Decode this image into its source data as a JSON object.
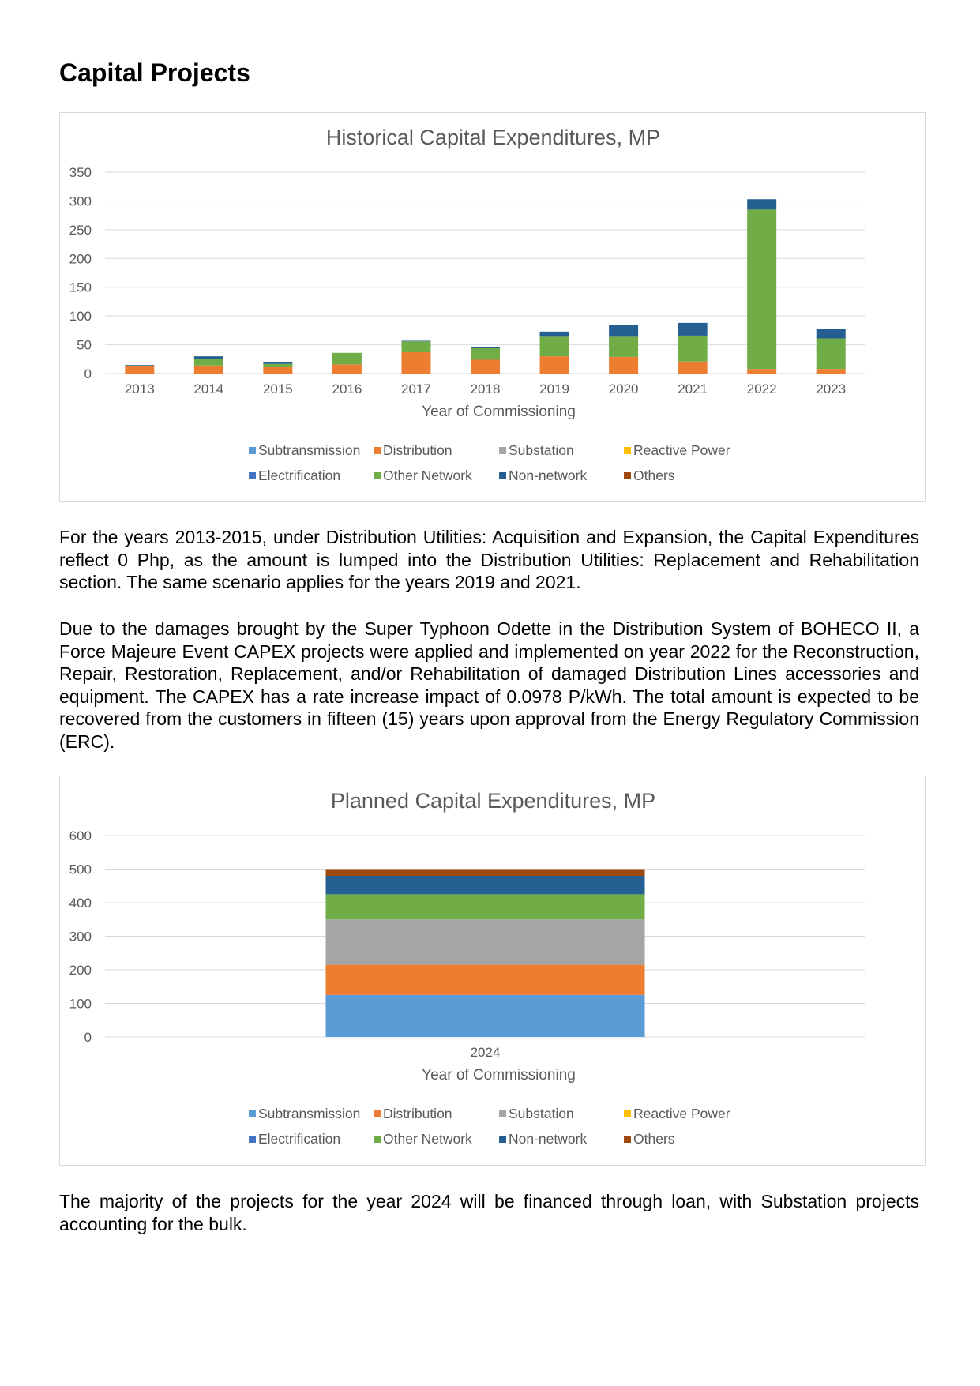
{
  "page": {
    "heading": "Capital Projects",
    "paragraphs": [
      "For the years 2013-2015, under Distribution Utilities: Acquisition and Expansion, the Capital Expenditures reflect 0 Php, as the amount is lumped into the Distribution Utilities: Replacement and Rehabilitation section. The same scenario applies for the years 2019 and 2021.",
      "Due to the damages brought by the Super Typhoon Odette in the Distribution System of BOHECO II, a Force Majeure Event CAPEX projects were applied and implemented on year 2022 for the Reconstruction, Repair, Restoration, Replacement, and/or Rehabilitation of damaged Distribution Lines accessories and equipment. The CAPEX has a rate increase impact of 0.0978 P/kWh. The total amount is expected to be recovered from the customers in fifteen (15) years upon approval from the Energy Regulatory Commission (ERC).",
      "The majority of the projects for the year 2024 will be financed through loan, with Substation projects accounting for the bulk."
    ]
  },
  "chart_data": [
    {
      "type": "bar",
      "stacked": true,
      "title": "Historical Capital Expenditures, MP",
      "xlabel": "Year of Commissioning",
      "ylabel": "",
      "ylim": [
        0,
        350
      ],
      "yticks": [
        0,
        50,
        100,
        150,
        200,
        250,
        300,
        350
      ],
      "grid": true,
      "legend_position": "bottom",
      "categories": [
        "2013",
        "2014",
        "2015",
        "2016",
        "2017",
        "2018",
        "2019",
        "2020",
        "2021",
        "2022",
        "2023"
      ],
      "series": [
        {
          "name": "Subtransmission",
          "color": "#5b9bd5",
          "values": [
            0,
            0,
            0,
            0,
            0,
            0,
            0,
            0,
            0,
            0,
            0
          ]
        },
        {
          "name": "Distribution",
          "color": "#ed7d31",
          "values": [
            13,
            14,
            11,
            16,
            37,
            24,
            30,
            29,
            21,
            8,
            8
          ]
        },
        {
          "name": "Substation",
          "color": "#a5a5a5",
          "values": [
            0,
            0,
            0,
            0,
            0,
            0,
            0,
            0,
            0,
            0,
            0
          ]
        },
        {
          "name": "Reactive Power",
          "color": "#ffc000",
          "values": [
            0,
            0,
            0,
            0,
            0,
            0,
            0,
            0,
            0,
            0,
            0
          ]
        },
        {
          "name": "Electrification",
          "color": "#4472c4",
          "values": [
            0,
            0,
            0,
            0,
            0,
            0,
            0,
            0,
            0,
            0,
            0
          ]
        },
        {
          "name": "Other Network",
          "color": "#70ad47",
          "values": [
            1,
            11,
            6,
            20,
            19,
            20,
            34,
            35,
            45,
            277,
            53
          ]
        },
        {
          "name": "Non-network",
          "color": "#255e91",
          "values": [
            1,
            5,
            3,
            0,
            1,
            2,
            9,
            20,
            22,
            18,
            16
          ]
        },
        {
          "name": "Others",
          "color": "#9e480e",
          "values": [
            0,
            0,
            0,
            0,
            0,
            0,
            0,
            0,
            0,
            0,
            0
          ]
        }
      ]
    },
    {
      "type": "bar",
      "stacked": true,
      "title": "Planned Capital Expenditures, MP",
      "xlabel": "Year of Commissioning",
      "ylabel": "",
      "ylim": [
        0,
        600
      ],
      "yticks": [
        0,
        100,
        200,
        300,
        400,
        500,
        600
      ],
      "grid": true,
      "legend_position": "bottom",
      "categories": [
        "2024"
      ],
      "series": [
        {
          "name": "Subtransmission",
          "color": "#5b9bd5",
          "values": [
            125
          ]
        },
        {
          "name": "Distribution",
          "color": "#ed7d31",
          "values": [
            90
          ]
        },
        {
          "name": "Substation",
          "color": "#a5a5a5",
          "values": [
            135
          ]
        },
        {
          "name": "Reactive Power",
          "color": "#ffc000",
          "values": [
            0
          ]
        },
        {
          "name": "Electrification",
          "color": "#4472c4",
          "values": [
            0
          ]
        },
        {
          "name": "Other Network",
          "color": "#70ad47",
          "values": [
            75
          ]
        },
        {
          "name": "Non-network",
          "color": "#255e91",
          "values": [
            55
          ]
        },
        {
          "name": "Others",
          "color": "#9e480e",
          "values": [
            20
          ]
        }
      ]
    }
  ]
}
